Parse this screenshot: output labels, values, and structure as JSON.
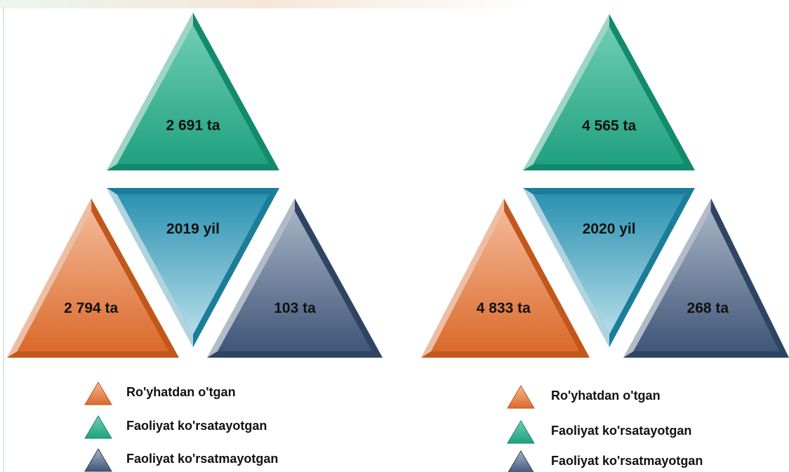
{
  "panels": [
    {
      "year": "2019 yil",
      "active": "2 691 ta",
      "registered": "2 794 ta",
      "inactive": "103 ta",
      "legend": [
        "Ro'yhatdan o'tgan",
        "Faoliyat ko'rsatayotgan",
        "Faoliyat ko'rsatmayotgan"
      ]
    },
    {
      "year": "2020 yil",
      "active": "4 565 ta",
      "registered": "4 833 ta",
      "inactive": "268 ta",
      "legend": [
        "Ro'yhatdan o'tgan",
        "Faoliyat ko'rsatayotgan",
        "Faoliyat ko'rsatmayotgan"
      ]
    }
  ]
}
